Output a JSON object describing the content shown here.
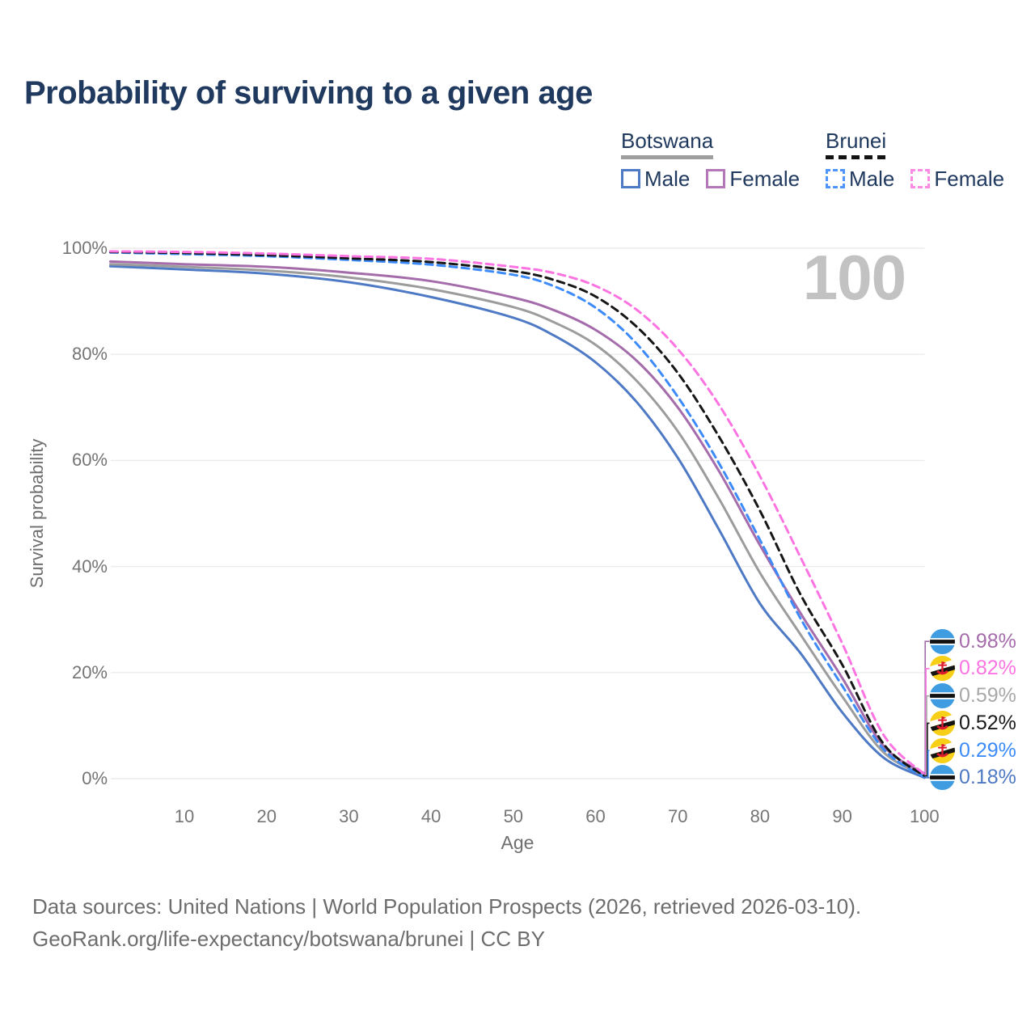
{
  "title": "Probability of surviving to a given age",
  "watermark": "100",
  "legend": {
    "groups": [
      {
        "name": "Botswana",
        "line_style": "solid",
        "line_color": "#9e9e9e",
        "items": [
          {
            "label": "Male",
            "style": "solid",
            "color": "#4e79c4"
          },
          {
            "label": "Female",
            "style": "solid",
            "color": "#b478b8"
          }
        ]
      },
      {
        "name": "Brunei",
        "line_style": "dashed",
        "line_color": "#141414",
        "items": [
          {
            "label": "Male",
            "style": "dashed",
            "color": "#4f94fc"
          },
          {
            "label": "Female",
            "style": "dashed",
            "color": "#fc8ae5"
          }
        ]
      }
    ]
  },
  "axes": {
    "y_label": "Survival probability",
    "x_label": "Age",
    "y_ticks": [
      {
        "label": "0%",
        "value": 0
      },
      {
        "label": "20%",
        "value": 20
      },
      {
        "label": "40%",
        "value": 40
      },
      {
        "label": "60%",
        "value": 60
      },
      {
        "label": "80%",
        "value": 80
      },
      {
        "label": "100%",
        "value": 100
      }
    ],
    "x_ticks": [
      {
        "label": "10",
        "value": 10
      },
      {
        "label": "20",
        "value": 20
      },
      {
        "label": "30",
        "value": 30
      },
      {
        "label": "40",
        "value": 40
      },
      {
        "label": "50",
        "value": 50
      },
      {
        "label": "60",
        "value": 60
      },
      {
        "label": "70",
        "value": 70
      },
      {
        "label": "80",
        "value": 80
      },
      {
        "label": "90",
        "value": 90
      },
      {
        "label": "100",
        "value": 100
      }
    ]
  },
  "chart_data": {
    "type": "line",
    "title": "Probability of surviving to a given age",
    "xlabel": "Age",
    "ylabel": "Survival probability",
    "xlim": [
      1,
      100
    ],
    "ylim": [
      0,
      100
    ],
    "grid": "horizontal",
    "legend_position": "top-right",
    "x": [
      1,
      10,
      20,
      30,
      40,
      50,
      55,
      60,
      65,
      70,
      75,
      80,
      85,
      90,
      95,
      100
    ],
    "series": [
      {
        "id": "botswana-male",
        "name": "Botswana Male",
        "country": "Botswana",
        "sex": "Male",
        "style": "solid",
        "color": "#4e79c4",
        "values": [
          96.6,
          96.0,
          95.2,
          93.6,
          90.8,
          86.9,
          83.5,
          78.5,
          71.0,
          60.5,
          47.0,
          33.0,
          23.5,
          12.5,
          4.0,
          0.18
        ],
        "end_label": "0.18%"
      },
      {
        "id": "botswana-both",
        "name": "Botswana",
        "country": "Botswana",
        "sex": "Both",
        "style": "solid",
        "color": "#9c9c9c",
        "values": [
          97.0,
          96.5,
          95.8,
          94.5,
          92.3,
          88.9,
          86.0,
          81.8,
          75.0,
          65.5,
          52.8,
          38.8,
          27.0,
          15.5,
          5.0,
          0.59
        ],
        "end_label": "0.59%"
      },
      {
        "id": "botswana-female",
        "name": "Botswana Female",
        "country": "Botswana",
        "sex": "Female",
        "style": "solid",
        "color": "#a56cab",
        "values": [
          97.5,
          97.0,
          96.5,
          95.4,
          93.8,
          90.7,
          88.3,
          84.6,
          78.8,
          70.0,
          58.0,
          44.0,
          31.0,
          19.0,
          6.2,
          0.98
        ],
        "end_label": "0.98%"
      },
      {
        "id": "brunei-male",
        "name": "Brunei Male",
        "country": "Brunei",
        "sex": "Male",
        "style": "dashed",
        "color": "#3d8bfa",
        "values": [
          99.2,
          98.9,
          98.5,
          97.8,
          96.9,
          95.0,
          92.8,
          88.8,
          82.0,
          72.0,
          59.5,
          45.0,
          30.0,
          17.5,
          5.6,
          0.29
        ],
        "end_label": "0.29%"
      },
      {
        "id": "brunei-both",
        "name": "Brunei",
        "country": "Brunei",
        "sex": "Both",
        "style": "dashed",
        "color": "#161616",
        "values": [
          99.3,
          99.1,
          98.7,
          98.1,
          97.4,
          95.7,
          94.0,
          90.9,
          85.2,
          76.5,
          64.5,
          50.5,
          34.5,
          21.5,
          6.6,
          0.52
        ],
        "end_label": "0.52%"
      },
      {
        "id": "brunei-female",
        "name": "Brunei Female",
        "country": "Brunei",
        "sex": "Female",
        "style": "dashed",
        "color": "#fb74e1",
        "values": [
          99.4,
          99.3,
          99.0,
          98.5,
          98.0,
          96.5,
          95.3,
          92.9,
          88.4,
          81.0,
          70.5,
          57.0,
          41.5,
          25.5,
          8.3,
          0.82
        ],
        "end_label": "0.82%"
      }
    ]
  },
  "right_labels": [
    {
      "value": "0.98%",
      "flag": "botswana",
      "series_id": "botswana-female",
      "color": "#a56cab"
    },
    {
      "value": "0.82%",
      "flag": "brunei",
      "series_id": "brunei-female",
      "color": "#fb74e1"
    },
    {
      "value": "0.59%",
      "flag": "botswana",
      "series_id": "botswana-both",
      "color": "#a8a8a8"
    },
    {
      "value": "0.52%",
      "flag": "brunei",
      "series_id": "brunei-both",
      "color": "#1a1a1a"
    },
    {
      "value": "0.29%",
      "flag": "brunei",
      "series_id": "brunei-male",
      "color": "#3d8bfa"
    },
    {
      "value": "0.18%",
      "flag": "botswana",
      "series_id": "botswana-male",
      "color": "#4e79c4"
    }
  ],
  "footer": {
    "line1": "Data sources: United Nations | World Population Prospects (2026, retrieved 2026-03-10).",
    "line2": "GeoRank.org/life-expectancy/botswana/brunei | CC BY"
  }
}
